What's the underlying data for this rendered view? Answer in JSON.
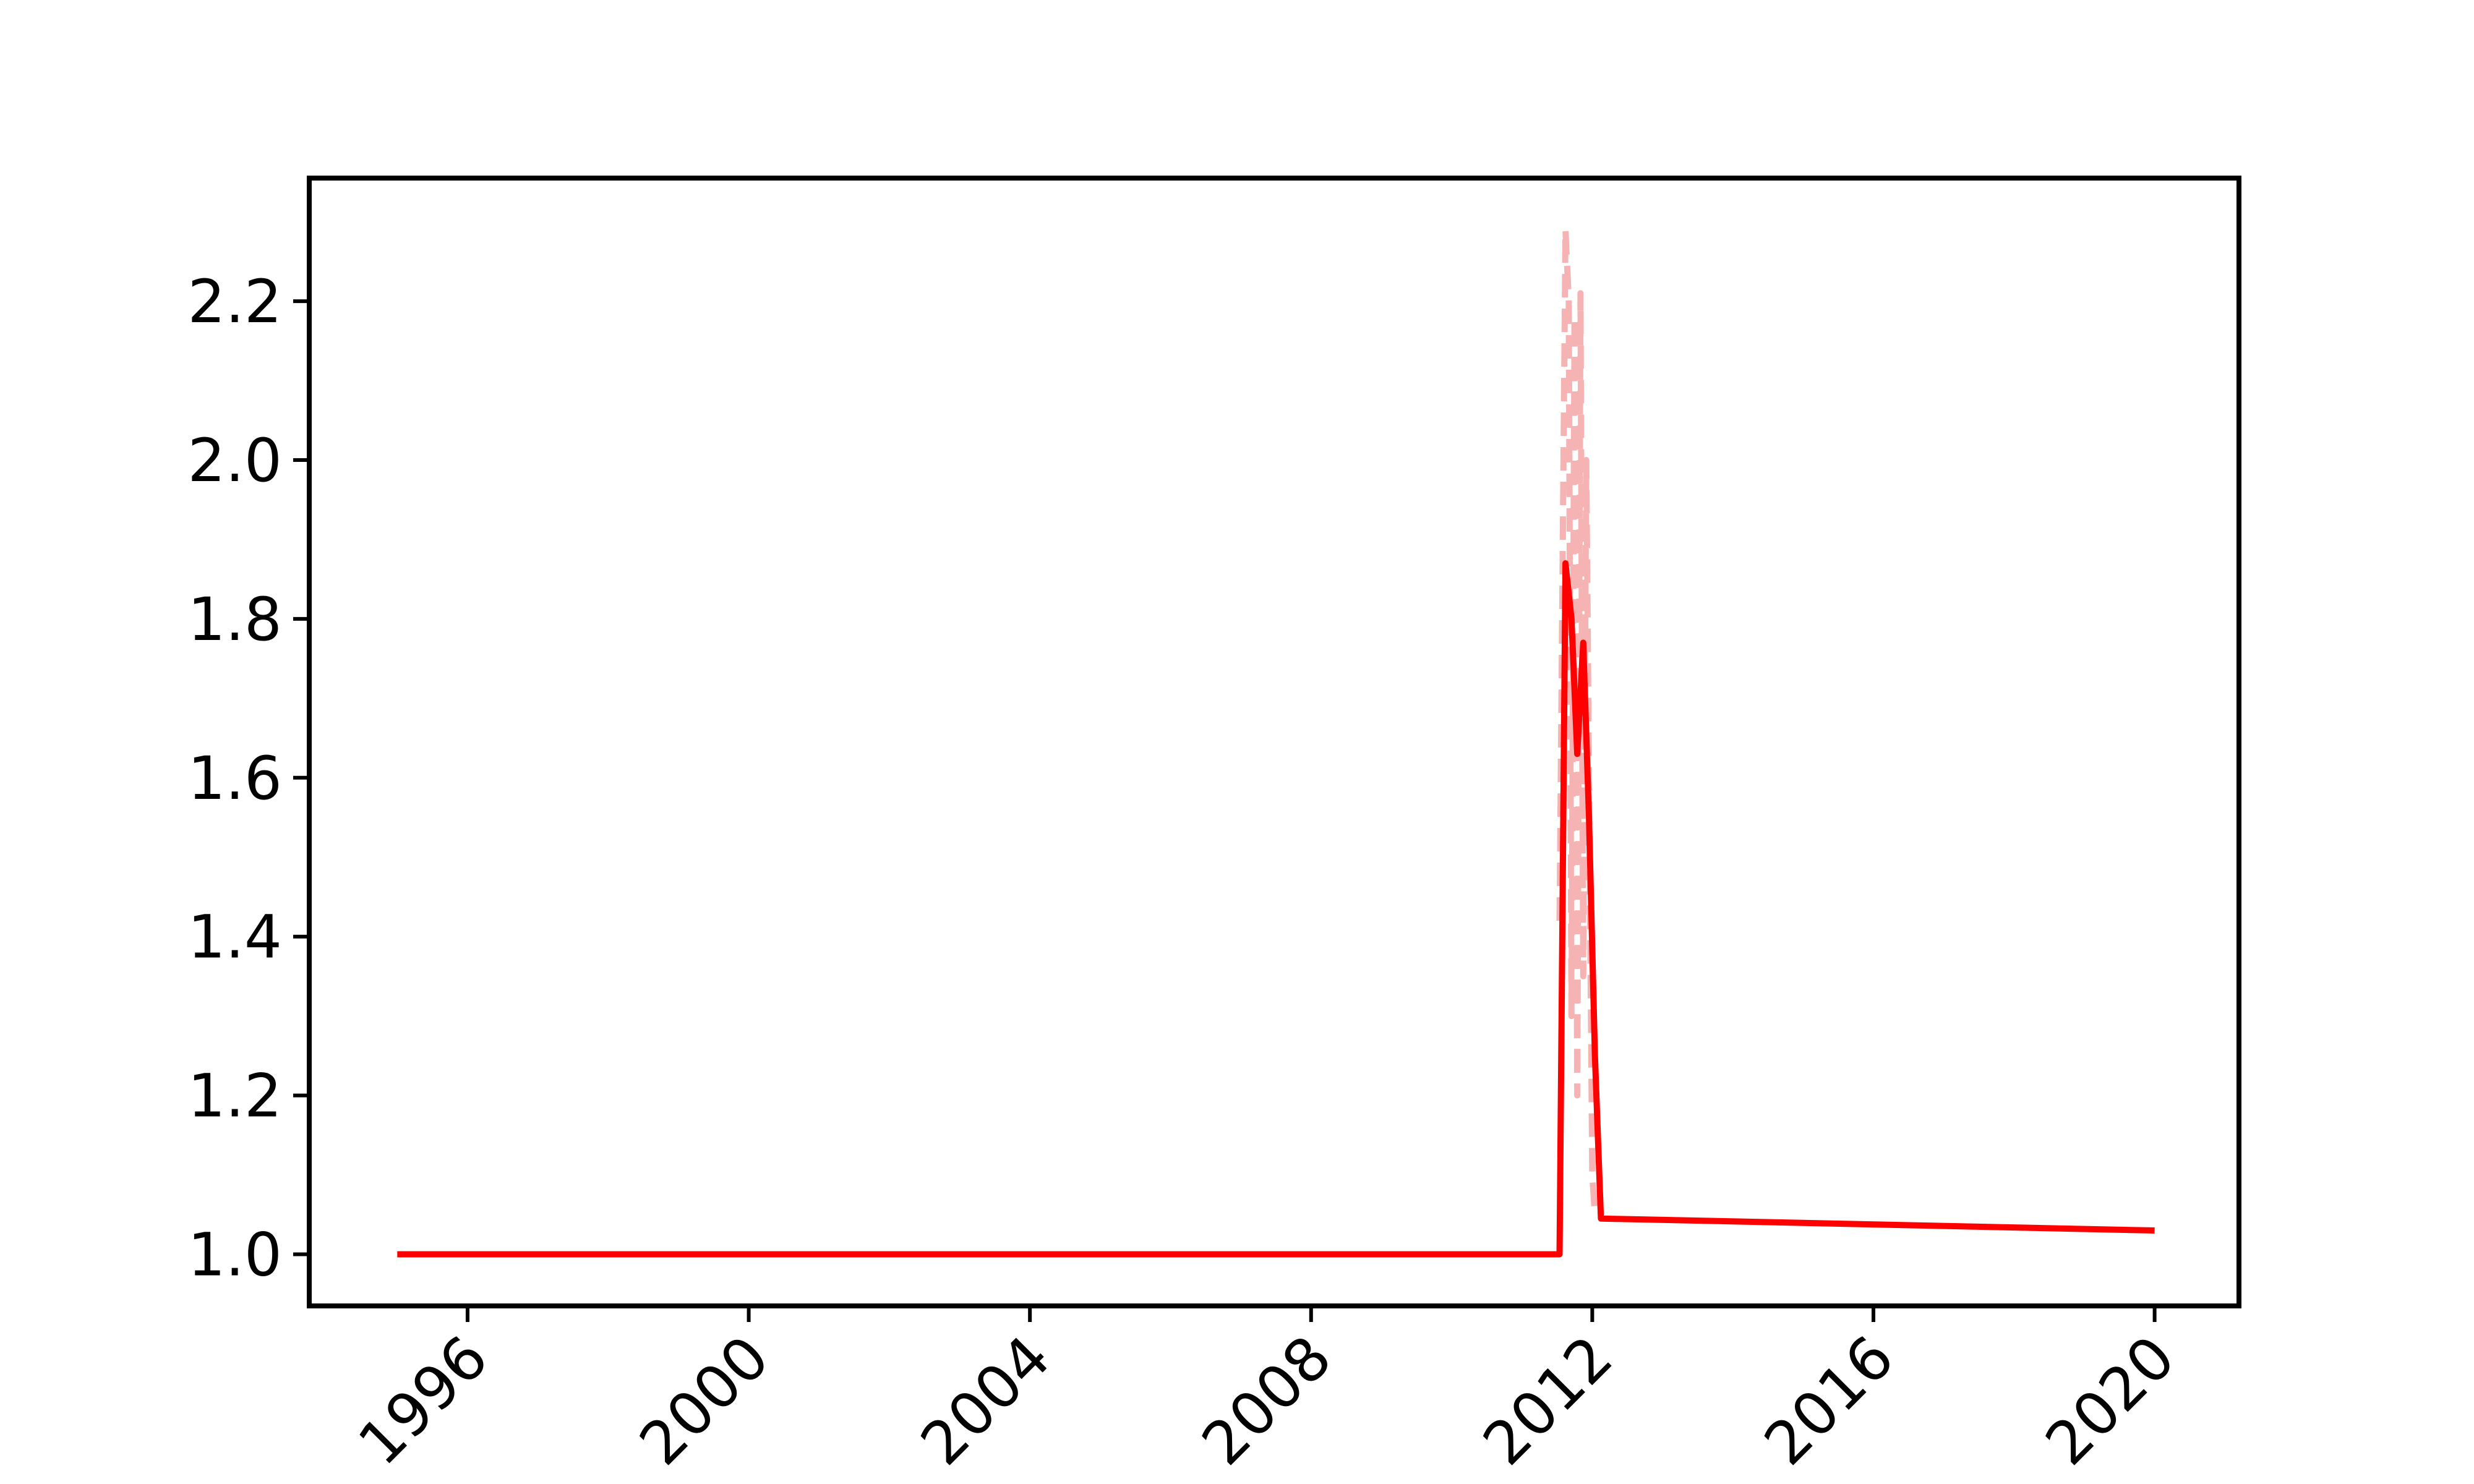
{
  "chart_data": {
    "type": "line",
    "title": "",
    "xlabel": "",
    "ylabel": "",
    "x_axis": {
      "ticks": [
        "1996",
        "2000",
        "2004",
        "2008",
        "2012",
        "2016",
        "2020"
      ],
      "xlim": [
        "1993-10-01",
        "2021-03-15"
      ]
    },
    "y_axis": {
      "ticks": [
        "1.0",
        "1.2",
        "1.4",
        "1.6",
        "1.8",
        "2.0",
        "2.2"
      ],
      "tick_values": [
        1.0,
        1.2,
        1.4,
        1.6,
        1.8,
        2.0,
        2.2
      ],
      "ylim": [
        0.935,
        2.355
      ]
    },
    "grid": false,
    "legend": null,
    "series": [
      {
        "color": "#ff0000",
        "style": "solid",
        "opacity": 1.0,
        "x": [
          "1995-01-01",
          "2011-07-15",
          "2011-08-15",
          "2011-09-15",
          "2011-10-15",
          "2011-11-15",
          "2011-12-15",
          "2012-01-15",
          "2012-02-15",
          "2020-01-01"
        ],
        "y": [
          1.0,
          1.0,
          1.87,
          1.8,
          1.63,
          1.77,
          1.55,
          1.25,
          1.045,
          1.03
        ]
      },
      {
        "color": "#f4a0a0",
        "style": "dashed",
        "opacity": 0.8,
        "x": [
          "2011-07-15",
          "2011-08-15",
          "2011-09-01",
          "2011-09-15",
          "2011-10-01",
          "2011-10-15",
          "2011-11-01",
          "2011-11-15",
          "2011-12-01",
          "2011-12-15",
          "2012-01-01",
          "2012-01-15"
        ],
        "y": [
          1.42,
          2.29,
          2.2,
          1.3,
          2.18,
          1.2,
          2.21,
          1.35,
          2.0,
          1.6,
          1.1,
          1.05
        ]
      }
    ]
  }
}
